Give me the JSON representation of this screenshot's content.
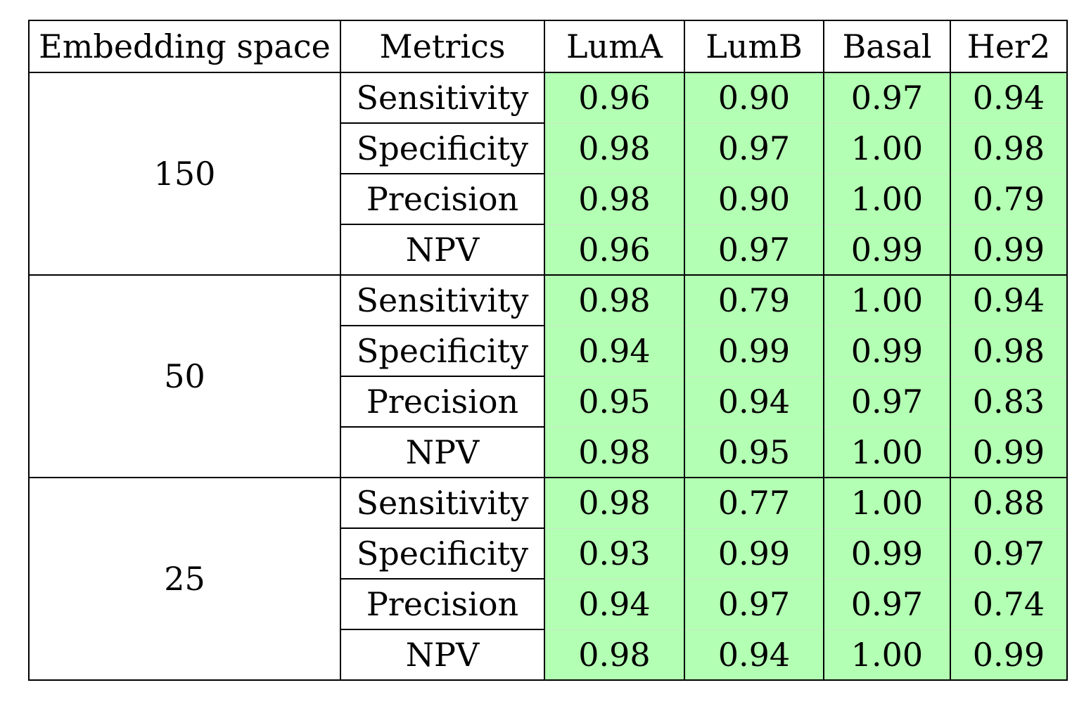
{
  "table": {
    "headers": [
      "Embedding space",
      "Metrics",
      "LumA",
      "LumB",
      "Basal",
      "Her2"
    ],
    "groups": [
      {
        "embedding": "150",
        "rows": [
          {
            "metric": "Sensitivity",
            "values": [
              "0.96",
              "0.90",
              "0.97",
              "0.94"
            ]
          },
          {
            "metric": "Specificity",
            "values": [
              "0.98",
              "0.97",
              "1.00",
              "0.98"
            ]
          },
          {
            "metric": "Precision",
            "values": [
              "0.98",
              "0.90",
              "1.00",
              "0.79"
            ]
          },
          {
            "metric": "NPV",
            "values": [
              "0.96",
              "0.97",
              "0.99",
              "0.99"
            ]
          }
        ]
      },
      {
        "embedding": "50",
        "rows": [
          {
            "metric": "Sensitivity",
            "values": [
              "0.98",
              "0.79",
              "1.00",
              "0.94"
            ]
          },
          {
            "metric": "Specificity",
            "values": [
              "0.94",
              "0.99",
              "0.99",
              "0.98"
            ]
          },
          {
            "metric": "Precision",
            "values": [
              "0.95",
              "0.94",
              "0.97",
              "0.83"
            ]
          },
          {
            "metric": "NPV",
            "values": [
              "0.98",
              "0.95",
              "1.00",
              "0.99"
            ]
          }
        ]
      },
      {
        "embedding": "25",
        "rows": [
          {
            "metric": "Sensitivity",
            "values": [
              "0.98",
              "0.77",
              "1.00",
              "0.88"
            ]
          },
          {
            "metric": "Specificity",
            "values": [
              "0.93",
              "0.99",
              "0.99",
              "0.97"
            ]
          },
          {
            "metric": "Precision",
            "values": [
              "0.94",
              "0.97",
              "0.97",
              "0.74"
            ]
          },
          {
            "metric": "NPV",
            "values": [
              "0.98",
              "0.94",
              "1.00",
              "0.99"
            ]
          }
        ]
      }
    ],
    "colors": {
      "value_cell_bg": "#b3ffb3",
      "border": "#000000"
    }
  }
}
